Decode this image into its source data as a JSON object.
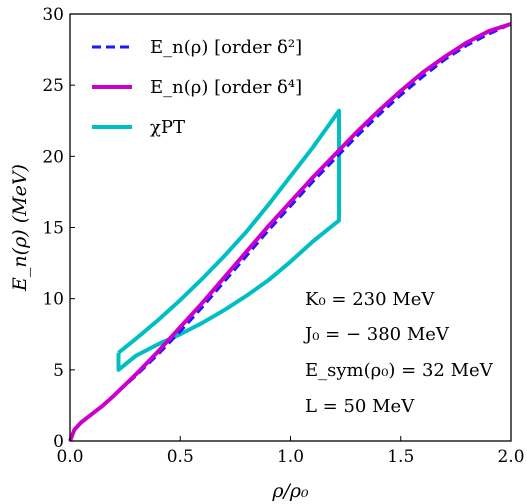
{
  "chart_data": {
    "type": "line",
    "xlabel": "ρ/ρ₀",
    "ylabel": "E_n(ρ) (MeV)",
    "xlim": [
      0.0,
      2.0
    ],
    "ylim": [
      0,
      30
    ],
    "xticks": [
      "0.0",
      "0.5",
      "1.0",
      "1.5",
      "2.0"
    ],
    "yticks": [
      "0",
      "5",
      "10",
      "15",
      "20",
      "25",
      "30"
    ],
    "grid": false,
    "legend_position": "top-left",
    "series": [
      {
        "name": "E_n(ρ) [order δ²]",
        "style": "dashed",
        "color": "#1a1aff",
        "x": [
          0.0,
          0.02,
          0.05,
          0.1,
          0.15,
          0.2,
          0.3,
          0.4,
          0.5,
          0.6,
          0.7,
          0.8,
          0.9,
          1.0,
          1.1,
          1.2,
          1.3,
          1.4,
          1.5,
          1.6,
          1.7,
          1.8,
          1.9,
          2.0
        ],
        "y": [
          0.0,
          0.8,
          1.3,
          1.9,
          2.5,
          3.2,
          4.6,
          6.1,
          7.7,
          9.4,
          11.2,
          13.0,
          14.8,
          16.5,
          18.2,
          19.8,
          21.4,
          22.9,
          24.3,
          25.6,
          26.8,
          27.8,
          28.6,
          29.3
        ]
      },
      {
        "name": "E_n(ρ) [order δ⁴]",
        "style": "solid",
        "color": "#cc00cc",
        "x": [
          0.0,
          0.02,
          0.05,
          0.1,
          0.15,
          0.2,
          0.3,
          0.4,
          0.5,
          0.6,
          0.7,
          0.8,
          0.9,
          1.0,
          1.1,
          1.2,
          1.3,
          1.4,
          1.5,
          1.6,
          1.7,
          1.8,
          1.9,
          2.0
        ],
        "y": [
          0.0,
          0.8,
          1.3,
          1.9,
          2.5,
          3.2,
          4.7,
          6.3,
          8.0,
          9.7,
          11.5,
          13.3,
          15.1,
          16.8,
          18.5,
          20.1,
          21.7,
          23.2,
          24.6,
          25.9,
          27.0,
          28.0,
          28.8,
          29.3
        ]
      },
      {
        "name": "χPT",
        "style": "solid",
        "color": "#00bfc4",
        "x": [
          0.22,
          0.3,
          0.4,
          0.5,
          0.6,
          0.7,
          0.8,
          0.9,
          1.0,
          1.1,
          1.22,
          1.22,
          1.1,
          1.0,
          0.9,
          0.8,
          0.7,
          0.6,
          0.5,
          0.4,
          0.3,
          0.22,
          0.22
        ],
        "y": [
          6.2,
          7.2,
          8.5,
          9.9,
          11.4,
          13.0,
          14.7,
          16.6,
          18.6,
          20.6,
          23.2,
          15.5,
          14.0,
          12.6,
          11.3,
          10.2,
          9.2,
          8.3,
          7.5,
          6.8,
          6.0,
          5.0,
          6.2
        ]
      }
    ],
    "annotations": [
      "K₀ = 230 MeV",
      "J₀ = − 380 MeV",
      "E_sym(ρ₀) = 32 MeV",
      "L = 50 MeV"
    ]
  }
}
